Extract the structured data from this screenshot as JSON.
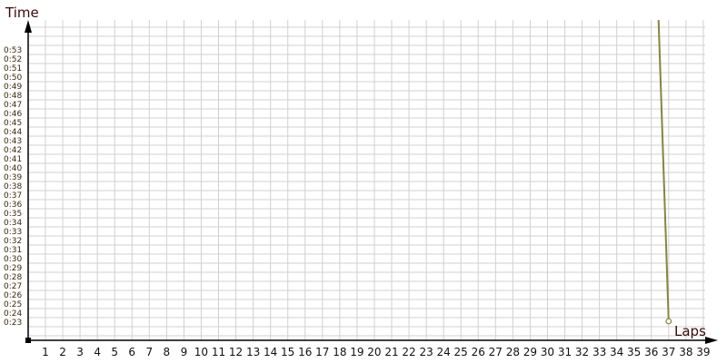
{
  "chart_data": {
    "type": "line",
    "title": "",
    "xlabel": "Laps",
    "ylabel": "Time",
    "x_ticks": [
      "1",
      "2",
      "3",
      "4",
      "5",
      "6",
      "7",
      "8",
      "9",
      "10",
      "11",
      "12",
      "13",
      "14",
      "15",
      "16",
      "17",
      "18",
      "19",
      "20",
      "21",
      "22",
      "23",
      "24",
      "25",
      "26",
      "27",
      "28",
      "29",
      "30",
      "31",
      "32",
      "33",
      "34",
      "35",
      "36",
      "37",
      "38",
      "39"
    ],
    "y_ticks": [
      "0:23",
      "0:24",
      "0:25",
      "0:26",
      "0:27",
      "0:28",
      "0:29",
      "0:30",
      "0:31",
      "0:32",
      "0:33",
      "0:34",
      "0:35",
      "0:36",
      "0:37",
      "0:38",
      "0:39",
      "0:40",
      "0:41",
      "0:42",
      "0:43",
      "0:44",
      "0:45",
      "0:46",
      "0:47",
      "0:48",
      "0:49",
      "0:50",
      "0:51",
      "0:52",
      "0:53"
    ],
    "xlim": [
      0,
      39
    ],
    "ylim_seconds": [
      21.5,
      56
    ],
    "grid": true,
    "series": [
      {
        "color": "#85853f",
        "points": [
          {
            "lap": 36,
            "time_s": 80
          },
          {
            "lap": 37,
            "time_s": 23.1
          }
        ]
      }
    ]
  }
}
